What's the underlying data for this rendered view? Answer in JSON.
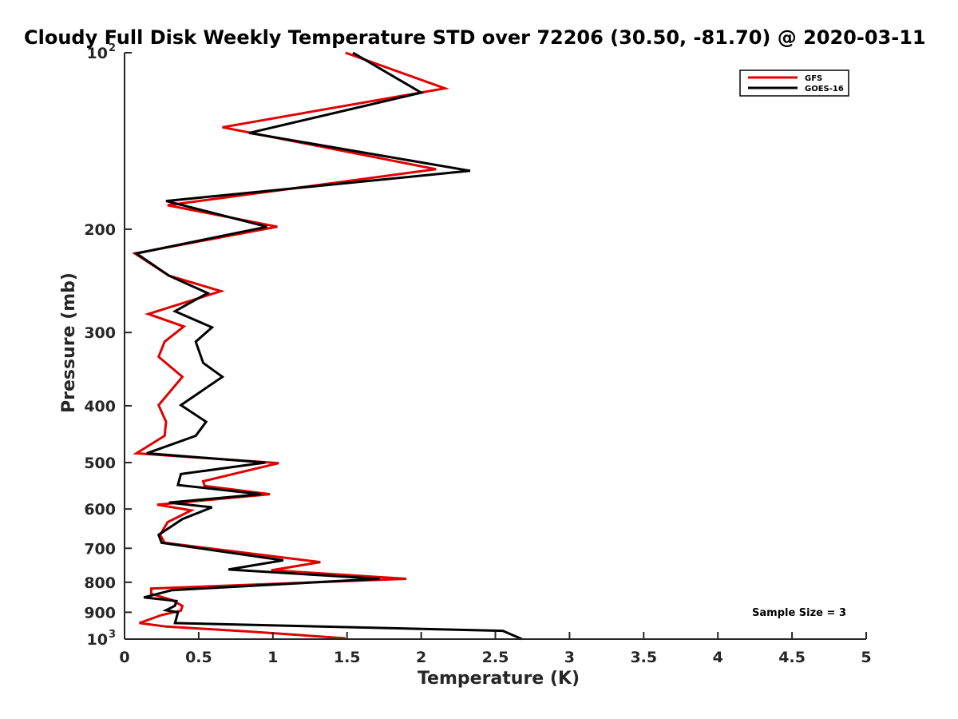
{
  "chart_data": {
    "type": "line",
    "title": "Cloudy Full Disk Weekly Temperature STD over 72206 (30.50, -81.70) @ 2020-03-11",
    "xlabel": "Temperature (K)",
    "ylabel": "Pressure (mb)",
    "xlim": [
      0,
      5
    ],
    "ylim": [
      100,
      1000
    ],
    "y_scale": "log",
    "y_direction": "reversed",
    "x_ticks": [
      "0",
      "0.5",
      "1",
      "1.5",
      "2",
      "2.5",
      "3",
      "3.5",
      "4",
      "4.5",
      "5"
    ],
    "x_tick_values": [
      0,
      0.5,
      1,
      1.5,
      2,
      2.5,
      3,
      3.5,
      4,
      4.5,
      5
    ],
    "y_ticks": [
      {
        "value": 100,
        "base": "10",
        "exp": "2"
      },
      {
        "value": 200,
        "label": "200"
      },
      {
        "value": 300,
        "label": "300"
      },
      {
        "value": 400,
        "label": "400"
      },
      {
        "value": 500,
        "label": "500"
      },
      {
        "value": 600,
        "label": "600"
      },
      {
        "value": 700,
        "label": "700"
      },
      {
        "value": 800,
        "label": "800"
      },
      {
        "value": 900,
        "label": "900"
      },
      {
        "value": 1000,
        "base": "10",
        "exp": "3"
      }
    ],
    "legend": {
      "position": "top-right"
    },
    "annotation": "Sample Size = 3",
    "series": [
      {
        "name": "GFS",
        "color": "#e00000",
        "points": [
          [
            1.49,
            100
          ],
          [
            2.16,
            115
          ],
          [
            0.66,
            134
          ],
          [
            2.1,
            158
          ],
          [
            0.29,
            182
          ],
          [
            1.03,
            198
          ],
          [
            0.07,
            220
          ],
          [
            0.3,
            240
          ],
          [
            0.65,
            255
          ],
          [
            0.16,
            279
          ],
          [
            0.4,
            293
          ],
          [
            0.27,
            311
          ],
          [
            0.23,
            330
          ],
          [
            0.39,
            357
          ],
          [
            0.23,
            399
          ],
          [
            0.28,
            426
          ],
          [
            0.27,
            450
          ],
          [
            0.08,
            482
          ],
          [
            1.04,
            501
          ],
          [
            0.53,
            538
          ],
          [
            0.54,
            548
          ],
          [
            0.98,
            566
          ],
          [
            0.22,
            590
          ],
          [
            0.45,
            603
          ],
          [
            0.29,
            632
          ],
          [
            0.24,
            664
          ],
          [
            0.27,
            685
          ],
          [
            1.32,
            739
          ],
          [
            0.99,
            763
          ],
          [
            1.9,
            789
          ],
          [
            0.18,
            820
          ],
          [
            0.18,
            837
          ],
          [
            0.32,
            858
          ],
          [
            0.39,
            878
          ],
          [
            0.38,
            894
          ],
          [
            0.25,
            910
          ],
          [
            0.1,
            939
          ],
          [
            0.28,
            952
          ],
          [
            0.85,
            971
          ],
          [
            1.49,
            997
          ]
        ]
      },
      {
        "name": "GOES-16",
        "color": "#000000",
        "points": [
          [
            1.54,
            100
          ],
          [
            2.0,
            117
          ],
          [
            0.84,
            137
          ],
          [
            2.33,
            159
          ],
          [
            0.28,
            179
          ],
          [
            0.96,
            198
          ],
          [
            0.08,
            220
          ],
          [
            0.3,
            240
          ],
          [
            0.56,
            257
          ],
          [
            0.34,
            276
          ],
          [
            0.59,
            294
          ],
          [
            0.48,
            311
          ],
          [
            0.53,
            338
          ],
          [
            0.66,
            357
          ],
          [
            0.38,
            399
          ],
          [
            0.55,
            426
          ],
          [
            0.48,
            450
          ],
          [
            0.15,
            482
          ],
          [
            0.95,
            500
          ],
          [
            0.38,
            523
          ],
          [
            0.36,
            546
          ],
          [
            0.92,
            566
          ],
          [
            0.3,
            585
          ],
          [
            0.59,
            596
          ],
          [
            0.39,
            624
          ],
          [
            0.23,
            664
          ],
          [
            0.25,
            685
          ],
          [
            1.07,
            734
          ],
          [
            0.7,
            761
          ],
          [
            1.72,
            789
          ],
          [
            0.32,
            825
          ],
          [
            0.13,
            849
          ],
          [
            0.35,
            861
          ],
          [
            0.34,
            877
          ],
          [
            0.28,
            893
          ],
          [
            0.36,
            900
          ],
          [
            0.34,
            939
          ],
          [
            2.55,
            968
          ],
          [
            2.68,
            1000
          ]
        ]
      }
    ]
  }
}
